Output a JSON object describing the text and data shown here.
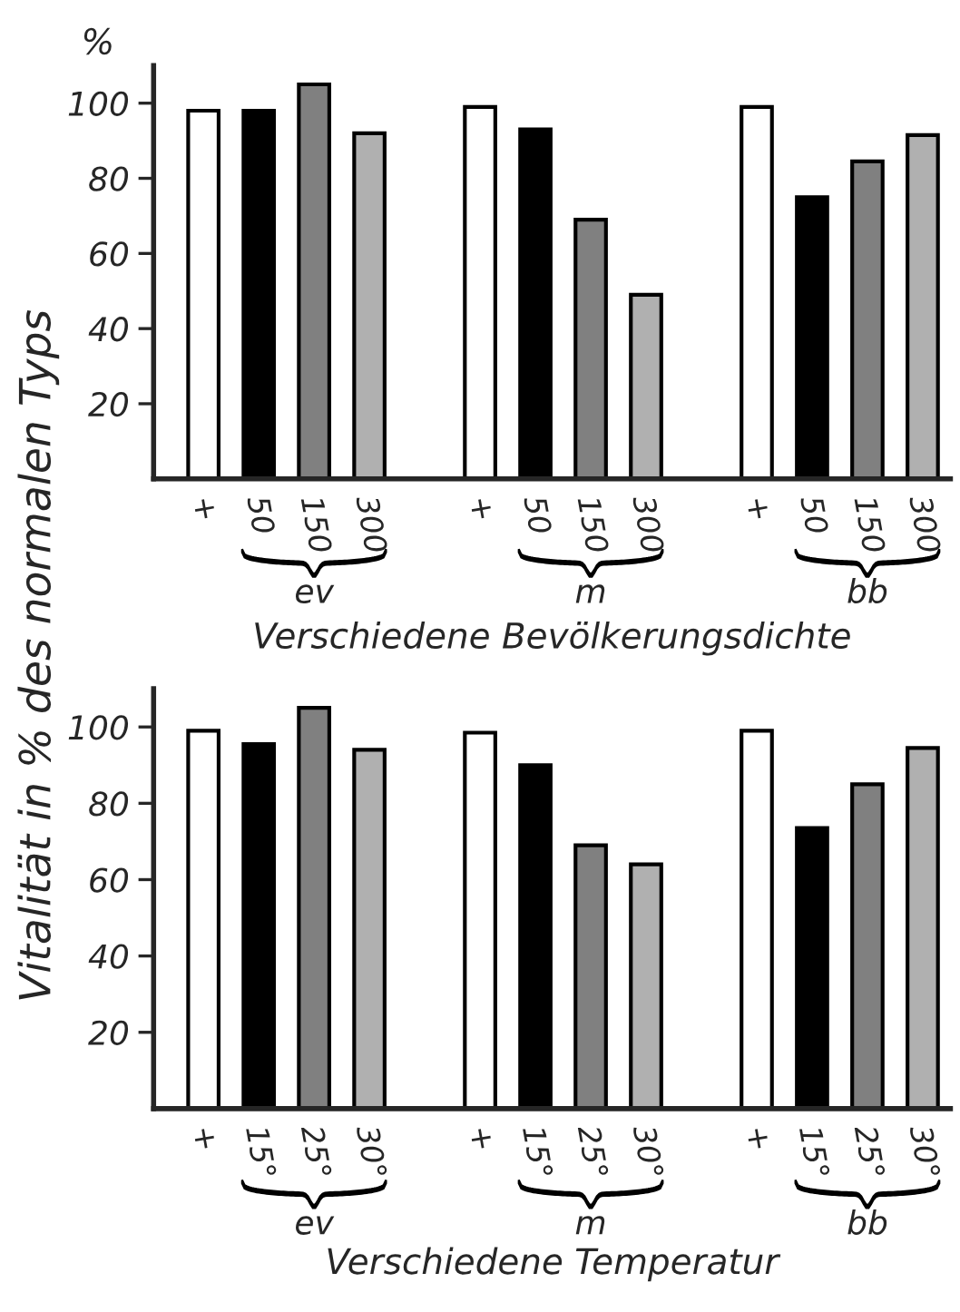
{
  "chart_data": [
    {
      "type": "bar",
      "ylabel": "%",
      "xlabel": "Verschiedene Bevölkerungsdichte",
      "categories": [
        "+",
        "50",
        "150",
        "300",
        "+",
        "50",
        "150",
        "300",
        "+",
        "50",
        "150",
        "300"
      ],
      "values": [
        98,
        98,
        105,
        92,
        99,
        93,
        69,
        49,
        99,
        75,
        84.5,
        91.5
      ],
      "colors": [
        "#ffffff",
        "#000000",
        "#808080",
        "#b0b0b0",
        "#ffffff",
        "#000000",
        "#808080",
        "#b0b0b0",
        "#ffffff",
        "#000000",
        "#808080",
        "#b0b0b0"
      ],
      "ylim": [
        0,
        110
      ],
      "yticks": [
        20,
        40,
        60,
        80,
        100
      ],
      "grid": false,
      "legend": false,
      "annotations": [
        "ev",
        "m",
        "bb"
      ]
    },
    {
      "type": "bar",
      "ylabel": "Vitalität in % des normalen Typs",
      "xlabel": "Verschiedene Temperatur",
      "categories": [
        "+",
        "15°",
        "25°",
        "30°",
        "+",
        "15°",
        "25°",
        "30°",
        "+",
        "15°",
        "25°",
        "30°"
      ],
      "values": [
        99,
        95.5,
        105,
        94,
        98.5,
        90,
        69,
        64,
        99,
        73.5,
        85,
        94.5
      ],
      "colors": [
        "#ffffff",
        "#000000",
        "#808080",
        "#b0b0b0",
        "#ffffff",
        "#000000",
        "#808080",
        "#b0b0b0",
        "#ffffff",
        "#000000",
        "#808080",
        "#b0b0b0"
      ],
      "ylim": [
        0,
        110
      ],
      "yticks": [
        20,
        40,
        60,
        80,
        100
      ],
      "grid": false,
      "legend": false,
      "annotations": [
        "ev",
        "m",
        "bb"
      ]
    }
  ]
}
